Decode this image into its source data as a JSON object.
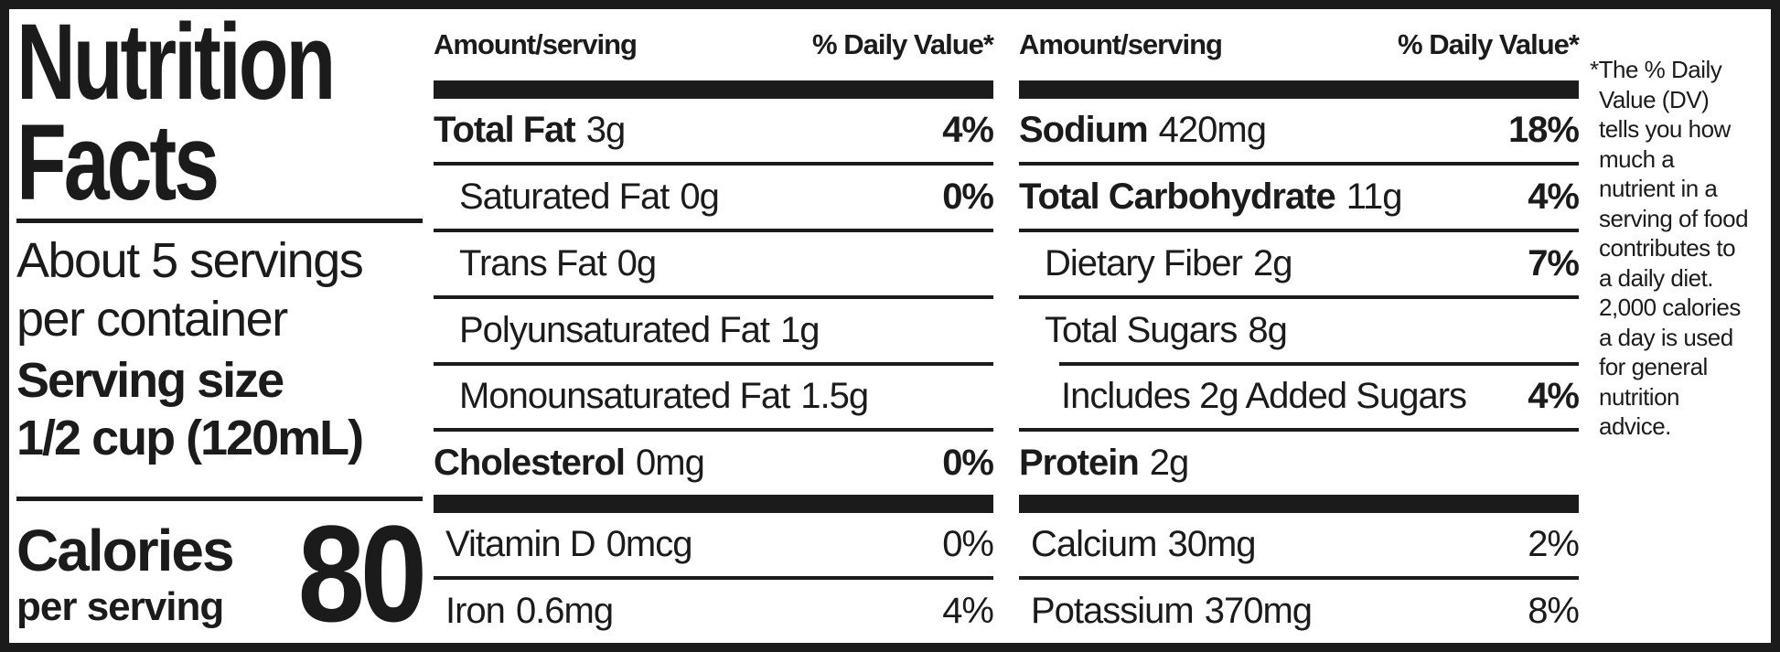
{
  "label": {
    "title_line1": "Nutrition",
    "title_line2": "Facts",
    "servings_per_container": "About 5 servings\nper container",
    "serving_size_label": "Serving size",
    "serving_size_value": "1/2 cup (120mL)",
    "calories_label": "Calories",
    "calories_sublabel": "per serving",
    "calories_value": "80",
    "column_header": {
      "amount": "Amount/serving",
      "dv": "% Daily Value*"
    },
    "columns": {
      "middle": {
        "rows": [
          {
            "name": "Total Fat",
            "amount": "3g",
            "dv": "4%"
          },
          {
            "name": "Saturated Fat",
            "amount": "0g",
            "dv": "0%"
          },
          {
            "name": "Trans Fat",
            "amount": "0g",
            "dv": ""
          },
          {
            "name": "Polyunsaturated Fat",
            "amount": "1g",
            "dv": ""
          },
          {
            "name": "Monounsaturated Fat",
            "amount": "1.5g",
            "dv": ""
          },
          {
            "name": "Cholesterol",
            "amount": "0mg",
            "dv": "0%"
          }
        ],
        "vitamin_rows": [
          {
            "name": "Vitamin D",
            "amount": "0mcg",
            "dv": "0%"
          },
          {
            "name": "Iron",
            "amount": "0.6mg",
            "dv": "4%"
          }
        ]
      },
      "right": {
        "rows": [
          {
            "name": "Sodium",
            "amount": "420mg",
            "dv": "18%"
          },
          {
            "name": "Total Carbohydrate",
            "amount": "11g",
            "dv": "4%"
          },
          {
            "name": "Dietary Fiber",
            "amount": "2g",
            "dv": "7%"
          },
          {
            "name": "Total Sugars",
            "amount": "8g",
            "dv": ""
          },
          {
            "name": "Includes 2g Added Sugars",
            "amount": "",
            "dv": "4%"
          },
          {
            "name": "Protein",
            "amount": "2g",
            "dv": ""
          }
        ],
        "vitamin_rows": [
          {
            "name": "Calcium",
            "amount": "30mg",
            "dv": "2%"
          },
          {
            "name": "Potassium",
            "amount": "370mg",
            "dv": "8%"
          }
        ]
      }
    },
    "footnote": "*The % Daily\nValue (DV)\ntells you how\nmuch a\nnutrient in a\nserving of food\ncontributes to\na daily diet.\n2,000 calories\na day is used\nfor general\nnutrition\nadvice."
  },
  "colors": {
    "ink": "#1b1b1b",
    "paper": "#ffffff"
  }
}
